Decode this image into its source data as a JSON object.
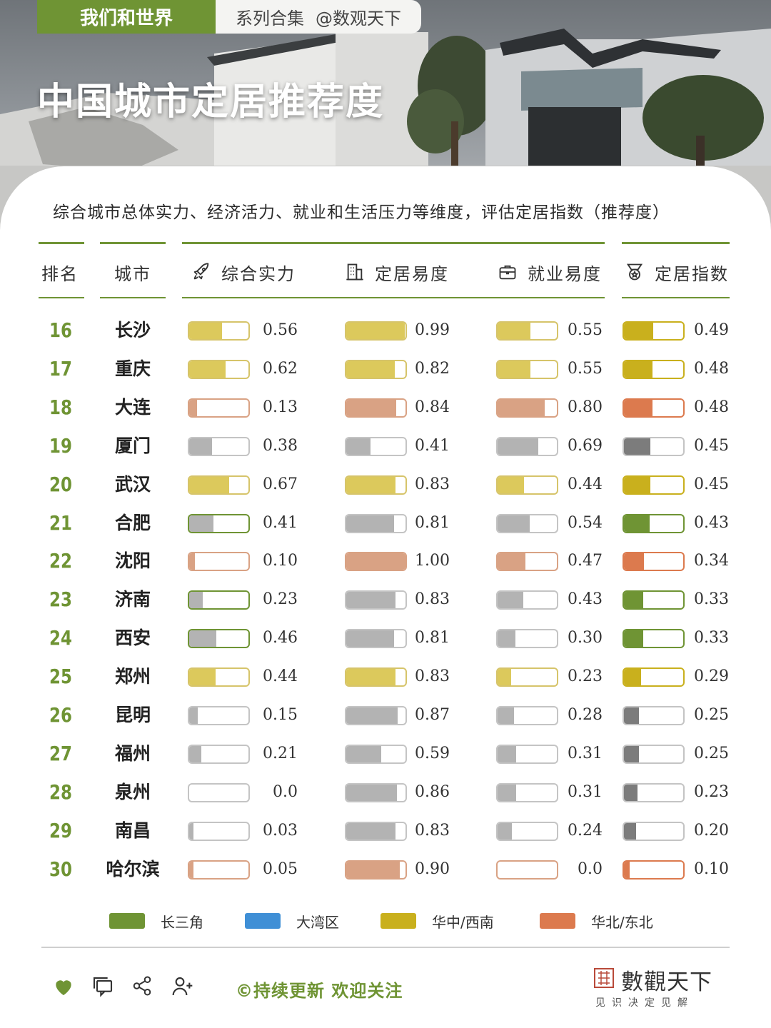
{
  "header": {
    "series_tag": "我们和世界",
    "collection_label": "系列合集",
    "author_handle": "@数观天下",
    "title": "中国城市定居推荐度"
  },
  "subtitle": "综合城市总体实力、经济活力、就业和生活压力等维度，评估定居指数（推荐度）",
  "columns": {
    "rank": "排名",
    "city": "城市",
    "strength": "综合实力",
    "settle": "定居易度",
    "job": "就业易度",
    "index": "定居指数"
  },
  "colors": {
    "accent_green": "#6f9434",
    "gray_fill": "#b3b3b3",
    "dark_gray_fill": "#7c7c7c",
    "south_light": "#dcc95c",
    "south_dark": "#c9b01d",
    "north_light": "#d9a284",
    "north_dark": "#dc7a4e",
    "yrd_dark": "#6f9434",
    "bay_area": "#3f8fd6"
  },
  "rows": [
    {
      "rank": "16",
      "city": "长沙",
      "region": "south",
      "strength": "0.56",
      "settle": "0.99",
      "job": "0.55",
      "index": "0.49"
    },
    {
      "rank": "17",
      "city": "重庆",
      "region": "south",
      "strength": "0.62",
      "settle": "0.82",
      "job": "0.55",
      "index": "0.48"
    },
    {
      "rank": "18",
      "city": "大连",
      "region": "north",
      "strength": "0.13",
      "settle": "0.84",
      "job": "0.80",
      "index": "0.48"
    },
    {
      "rank": "19",
      "city": "厦门",
      "region": "gray",
      "strength": "0.38",
      "settle": "0.41",
      "job": "0.69",
      "index": "0.45"
    },
    {
      "rank": "20",
      "city": "武汉",
      "region": "south",
      "strength": "0.67",
      "settle": "0.83",
      "job": "0.44",
      "index": "0.45"
    },
    {
      "rank": "21",
      "city": "合肥",
      "region": "yrd",
      "strength": "0.41",
      "settle": "0.81",
      "job": "0.54",
      "index": "0.43"
    },
    {
      "rank": "22",
      "city": "沈阳",
      "region": "north",
      "strength": "0.10",
      "settle": "1.00",
      "job": "0.47",
      "index": "0.34"
    },
    {
      "rank": "23",
      "city": "济南",
      "region": "yrd",
      "strength": "0.23",
      "settle": "0.83",
      "job": "0.43",
      "index": "0.33"
    },
    {
      "rank": "24",
      "city": "西安",
      "region": "yrd",
      "strength": "0.46",
      "settle": "0.81",
      "job": "0.30",
      "index": "0.33"
    },
    {
      "rank": "25",
      "city": "郑州",
      "region": "south",
      "strength": "0.44",
      "settle": "0.83",
      "job": "0.23",
      "index": "0.29"
    },
    {
      "rank": "26",
      "city": "昆明",
      "region": "gray",
      "strength": "0.15",
      "settle": "0.87",
      "job": "0.28",
      "index": "0.25"
    },
    {
      "rank": "27",
      "city": "福州",
      "region": "gray",
      "strength": "0.21",
      "settle": "0.59",
      "job": "0.31",
      "index": "0.25"
    },
    {
      "rank": "28",
      "city": "泉州",
      "region": "gray",
      "strength": "0.0",
      "settle": "0.86",
      "job": "0.31",
      "index": "0.23"
    },
    {
      "rank": "29",
      "city": "南昌",
      "region": "gray",
      "strength": "0.03",
      "settle": "0.83",
      "job": "0.24",
      "index": "0.20"
    },
    {
      "rank": "30",
      "city": "哈尔滨",
      "region": "north",
      "strength": "0.05",
      "settle": "0.90",
      "job": "0.0",
      "index": "0.10"
    }
  ],
  "legend": [
    {
      "label": "长三角",
      "color": "#6f9434"
    },
    {
      "label": "大湾区",
      "color": "#3f8fd6"
    },
    {
      "label": "华中/西南",
      "color": "#c9b01d"
    },
    {
      "label": "华北/东北",
      "color": "#dc7a4e"
    }
  ],
  "footer": {
    "follow_text": "©持续更新 欢迎关注",
    "brand_name": "數觀天下",
    "brand_slogan": "见识决定见解"
  }
}
